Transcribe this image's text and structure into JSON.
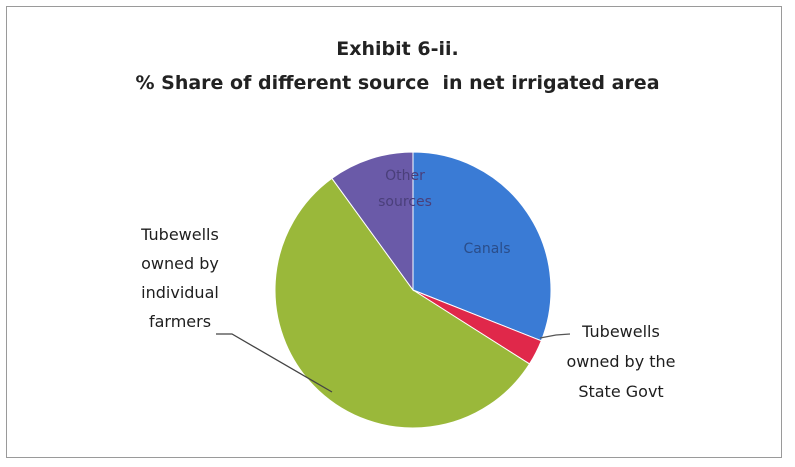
{
  "chart_data": {
    "type": "pie",
    "title": "Exhibit 6-ii.",
    "subtitle": "% Share of different source  in net irrigated area",
    "slices": [
      {
        "label": "Canals",
        "value": 31,
        "color": "#3a7bd5",
        "label_color": "#2a4d8a"
      },
      {
        "label": "Tubewells owned by the State Govt",
        "value": 3,
        "color": "#e0284a",
        "label_color": "#1e1e1e"
      },
      {
        "label": "Tubewells owned by individual farmers",
        "value": 56,
        "color": "#9ab83a",
        "label_color": "#1e1e1e"
      },
      {
        "label": "Other sources",
        "value": 10,
        "color": "#6a5aa8",
        "label_color": "#4a3f7a"
      }
    ],
    "display_labels": {
      "canals": [
        "Canals"
      ],
      "state": [
        "Tubewells",
        "owned by the",
        "State Govt"
      ],
      "farmers": [
        "Tubewells",
        "owned by",
        "individual",
        "farmers"
      ],
      "other": [
        "Other",
        "sources"
      ]
    },
    "legend": "none"
  }
}
